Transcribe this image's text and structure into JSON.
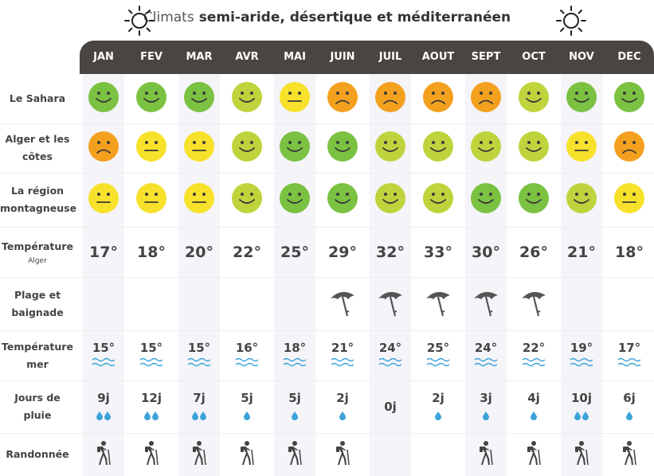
{
  "title": {
    "prefix": "Climats",
    "subtitle": "semi-aride, désertique et méditerranéen"
  },
  "months": [
    "JAN",
    "FEV",
    "MAR",
    "AVR",
    "MAI",
    "JUIN",
    "JUIL",
    "AOUT",
    "SEPT",
    "OCT",
    "NOV",
    "DEC"
  ],
  "rows": {
    "sahara": {
      "label": "Le Sahara",
      "moods": [
        "good",
        "good",
        "good",
        "fair",
        "ok",
        "bad",
        "bad",
        "bad",
        "bad",
        "fair",
        "good",
        "good"
      ]
    },
    "alger": {
      "label": "Alger et les côtes",
      "moods": [
        "bad",
        "ok",
        "ok",
        "fair",
        "good",
        "good",
        "fair",
        "fair",
        "fair",
        "fair",
        "ok",
        "bad"
      ]
    },
    "montagne": {
      "label": "La région montagneuse",
      "moods": [
        "ok",
        "ok",
        "ok",
        "fair",
        "good",
        "good",
        "fair",
        "fair",
        "good",
        "good",
        "fair",
        "ok"
      ]
    },
    "temperature": {
      "label": "Température",
      "sublabel": "Alger",
      "values": [
        "17°",
        "18°",
        "20°",
        "22°",
        "25°",
        "29°",
        "32°",
        "33°",
        "30°",
        "26°",
        "21°",
        "18°"
      ]
    },
    "plage": {
      "label": "Plage et baignade",
      "values": [
        false,
        false,
        false,
        false,
        false,
        true,
        true,
        true,
        true,
        true,
        false,
        false
      ]
    },
    "mer": {
      "label": "Température mer",
      "values": [
        "15°",
        "15°",
        "15°",
        "16°",
        "18°",
        "21°",
        "24°",
        "25°",
        "24°",
        "22°",
        "19°",
        "17°"
      ]
    },
    "pluie": {
      "label": "Jours de pluie",
      "values": [
        "9j",
        "12j",
        "7j",
        "5j",
        "5j",
        "2j",
        "0j",
        "2j",
        "3j",
        "4j",
        "10j",
        "6j"
      ],
      "drops": [
        2,
        2,
        2,
        1,
        1,
        1,
        0,
        1,
        1,
        1,
        2,
        1
      ]
    },
    "rando": {
      "label": "Randonnée",
      "values": [
        true,
        true,
        true,
        true,
        true,
        true,
        false,
        false,
        true,
        true,
        true,
        true
      ]
    }
  },
  "colors": {
    "good": "#7bc142",
    "fair": "#bfd43c",
    "ok": "#f7e12a",
    "bad": "#f4a01f",
    "header": "#4a4442",
    "water": "#3ba3d8"
  },
  "icons": {
    "sun": "sun-icon",
    "umbrella": "beach-umbrella-icon",
    "hiker": "hiker-icon",
    "drop": "rain-drop-icon",
    "waves": "waves-icon"
  }
}
